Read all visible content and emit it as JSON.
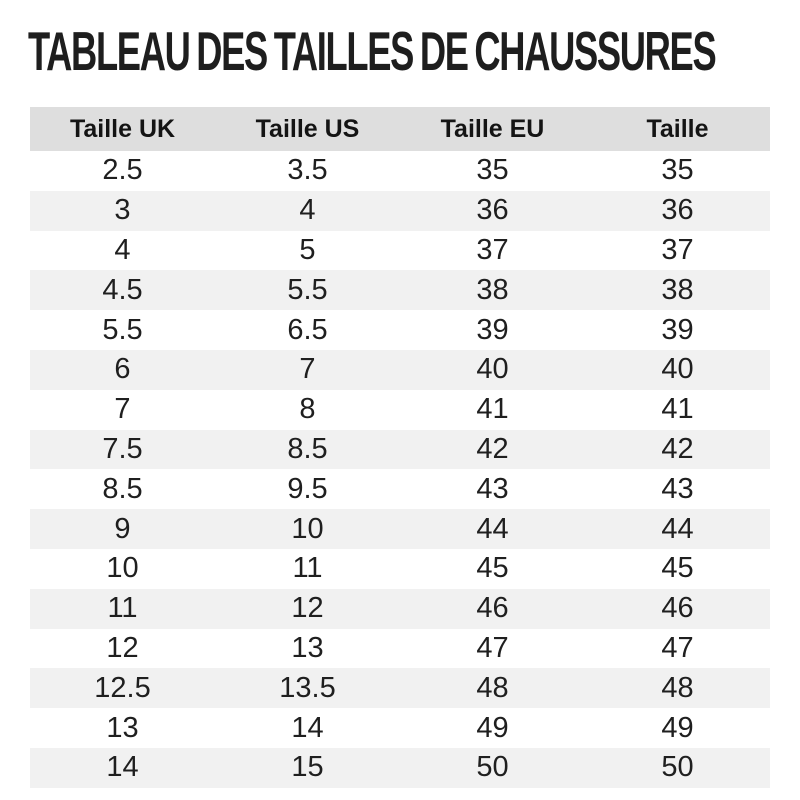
{
  "title": "TABLEAU DES TAILLES DE CHAUSSURES",
  "chart_data": {
    "type": "table",
    "title": "TABLEAU DES TAILLES DE CHAUSSURES",
    "columns": [
      "Taille UK",
      "Taille US",
      "Taille EU",
      "Taille"
    ],
    "rows": [
      [
        "2.5",
        "3.5",
        "35",
        "35"
      ],
      [
        "3",
        "4",
        "36",
        "36"
      ],
      [
        "4",
        "5",
        "37",
        "37"
      ],
      [
        "4.5",
        "5.5",
        "38",
        "38"
      ],
      [
        "5.5",
        "6.5",
        "39",
        "39"
      ],
      [
        "6",
        "7",
        "40",
        "40"
      ],
      [
        "7",
        "8",
        "41",
        "41"
      ],
      [
        "7.5",
        "8.5",
        "42",
        "42"
      ],
      [
        "8.5",
        "9.5",
        "43",
        "43"
      ],
      [
        "9",
        "10",
        "44",
        "44"
      ],
      [
        "10",
        "11",
        "45",
        "45"
      ],
      [
        "11",
        "12",
        "46",
        "46"
      ],
      [
        "12",
        "13",
        "47",
        "47"
      ],
      [
        "12.5",
        "13.5",
        "48",
        "48"
      ],
      [
        "13",
        "14",
        "49",
        "49"
      ],
      [
        "14",
        "15",
        "50",
        "50"
      ]
    ]
  },
  "colors": {
    "header_bg": "#dedede",
    "stripe_bg": "#f1f1f1",
    "text": "#1f1f1f"
  }
}
